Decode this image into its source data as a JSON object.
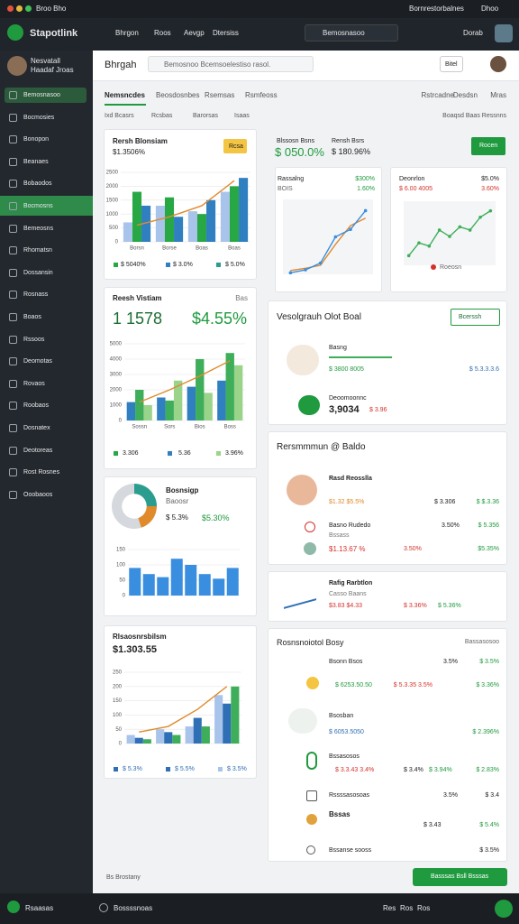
{
  "system_bar": {
    "app": "Broo Bho",
    "status": "Bornrestorbalnes",
    "user": "Dhoo"
  },
  "app_header": {
    "logo": "Stapotlink",
    "nav": [
      "Bhrgon",
      "Roos",
      "Aevgp",
      "Dtersiss"
    ],
    "search": "Bemosnasoo",
    "user": "Dorab"
  },
  "sidebar": {
    "profile_name": "Nesvatall",
    "profile_role": "Haadaf Jroas",
    "items": [
      "Bemosnasoo",
      "Bocmosies",
      "Bonopon",
      "Beanaes",
      "Bobaodos",
      "Bocmosns",
      "Bemeosns",
      "Rhomatsn",
      "Dossansin",
      "Rosnass",
      "Boaos",
      "Rssoos",
      "Deomotas",
      "Rovaos",
      "Roobaos",
      "Dosnatex",
      "Deotoreas",
      "Rost Rosnes",
      "Ooobaoos"
    ],
    "selected": 0,
    "highlighted": 5
  },
  "page_header": {
    "title": "Bhrgah",
    "search": "Bemosnoo Bcemsoelestiso rasol.",
    "badge": "Bitel"
  },
  "tabs": [
    "Nemsncdes",
    "Beosdosnbes",
    "Rsemsas",
    "Rsmfeoss"
  ],
  "tabs_right": [
    "Rstrcadne",
    "Desdsn",
    "Mras"
  ],
  "filters": [
    "Ixd Bcasrs",
    "Rcsbas",
    "Barorsas",
    "Isaas"
  ],
  "filters_right": "Boaqsd Baas Ressnns",
  "card_revenue": {
    "title": "Rersh Blonsiam",
    "subtitle": "$1.3506%",
    "badge": "Rcsa",
    "legend": [
      "$ 5040%",
      "$ 3.0%",
      "$ 5.0%"
    ],
    "chart": {
      "type": "bar",
      "categories": [
        "Borsn",
        "Borse",
        "Boas",
        "Boas"
      ],
      "ylim": [
        0,
        2500
      ],
      "yticks": [
        0,
        500,
        1000,
        1500,
        2000,
        2500
      ],
      "series": [
        {
          "color": "#a9c4ea",
          "values": [
            700,
            1300,
            1100,
            1800
          ]
        },
        {
          "color": "#27a844",
          "values": [
            1800,
            1600,
            1000,
            2000
          ]
        },
        {
          "color": "#2f7fc1",
          "values": [
            1300,
            900,
            1500,
            2300
          ]
        },
        {
          "type": "line",
          "color": "#e08a2c",
          "values": [
            600,
            900,
            1300,
            2200
          ]
        }
      ]
    }
  },
  "card_visits": {
    "title": "Reesh Vistiam",
    "meta": "Bas",
    "count": "1 1578",
    "rate": "$4.55%",
    "legend": [
      "3.306",
      "5.36",
      "3.96%"
    ],
    "chart": {
      "type": "bar",
      "categories": [
        "Sossn",
        "Sors",
        "Bios",
        "Boss"
      ],
      "ylim": [
        0,
        5000
      ],
      "yticks": [
        0,
        1000,
        2000,
        3000,
        4000,
        5000
      ],
      "series": [
        {
          "color": "#2f7fc1",
          "values": [
            1200,
            1500,
            2200,
            2600
          ]
        },
        {
          "color": "#3fae5a",
          "values": [
            2000,
            1300,
            4000,
            4400
          ]
        },
        {
          "color": "#9ad38a",
          "values": [
            1000,
            2600,
            1800,
            3600
          ]
        },
        {
          "type": "line",
          "color": "#e08a2c",
          "values": [
            1200,
            2000,
            2900,
            3900
          ]
        }
      ]
    }
  },
  "card_share": {
    "title": "Bosnsigp",
    "subtitle": "Baoosr",
    "value_a": "$ 5.3%",
    "value_b": "$5.30%",
    "pie": {
      "type": "pie",
      "values": [
        25,
        20,
        55
      ],
      "colors": [
        "#2a9d8f",
        "#e08a2c",
        "#d5d8dc"
      ]
    },
    "chart": {
      "type": "bar",
      "categories": [
        null,
        null,
        null,
        null,
        null,
        null,
        null,
        null
      ],
      "ylim": [
        0,
        150
      ],
      "yticks": [
        0,
        50,
        100,
        150
      ],
      "series": [
        {
          "color": "#3a8ee0",
          "values": [
            90,
            70,
            60,
            120,
            100,
            70,
            55,
            90
          ]
        }
      ]
    }
  },
  "card_balance": {
    "title": "Rlsaosnrsbilsm",
    "value": "$1.303.55",
    "legend": [
      "$ 5.3%",
      "$ 5.5%",
      "$ 3.5%"
    ],
    "chart": {
      "type": "bar",
      "categories": [
        null,
        null,
        null,
        null
      ],
      "ylim": [
        0,
        250
      ],
      "yticks": [
        0,
        50,
        100,
        150,
        200,
        250
      ],
      "series": [
        {
          "color": "#a9c4ea",
          "values": [
            30,
            50,
            60,
            170
          ]
        },
        {
          "color": "#2f6fb5",
          "values": [
            20,
            40,
            90,
            140
          ]
        },
        {
          "color": "#3fae5a",
          "values": [
            15,
            30,
            60,
            200
          ]
        },
        {
          "type": "line",
          "color": "#e08a2c",
          "values": [
            40,
            60,
            120,
            200
          ]
        }
      ]
    }
  },
  "card_growth": {
    "label": "Blssosn Bsns",
    "value": "$ 050.0%",
    "label_b": "Rensh Bsrs",
    "value_b": "$ 180.96%",
    "button": "Rocen",
    "left": {
      "title": "Rassalng",
      "value": "$300%",
      "sub": "BOIS",
      "rate": "1.60%",
      "chart": {
        "type": "line",
        "categories": [
          null,
          null,
          null,
          null,
          null,
          null
        ],
        "ylim": [
          0,
          100
        ],
        "series": [
          {
            "color": "#e08a2c",
            "values": [
              5,
              8,
              12,
              40,
              65,
              75
            ]
          },
          {
            "color": "#3a8ee0",
            "values": [
              2,
              6,
              15,
              50,
              60,
              85
            ],
            "markers": true
          }
        ]
      }
    },
    "right": {
      "title": "Deonrlon",
      "value": "$5.0%",
      "sub": "$ 6.00 4005",
      "rate": "3.60%",
      "legend": "Roeosn",
      "chart": {
        "type": "line",
        "categories": [
          null,
          null,
          null,
          null,
          null,
          null,
          null,
          null,
          null
        ],
        "ylim": [
          0,
          100
        ],
        "series": [
          {
            "color": "#3fae5a",
            "values": [
              15,
              35,
              30,
              55,
              45,
              60,
              55,
              75,
              85
            ],
            "markers": true
          }
        ]
      }
    }
  },
  "card_plot": {
    "title": "Vesolgrauh Olot Boal",
    "button": "Bcerssh",
    "row1": {
      "name": "Basng",
      "value": "$ 3800 8005",
      "stat": "$ 5.3.3.3.6"
    },
    "row2": {
      "name": "Deoomoonnc",
      "value": "3,9034",
      "stat": "$ 3.96"
    }
  },
  "card_summary": {
    "title": "Rersmmmun @ Baldo",
    "row1": {
      "name": "Rasd Reosslla",
      "value": "$1.32 $5.5%",
      "stat": "$ 3.306",
      "stat_b": "$ $.3.36"
    },
    "row2": {
      "name": "Basno Rudedo",
      "sub": "Bssass",
      "rate": "3.50%",
      "value_top": "$ 5.356",
      "value": "$1.13.67 %",
      "rate_b": "3.50%",
      "stat": "$5.35%"
    }
  },
  "card_rating": {
    "title": "Rafig Rarbtlon",
    "sub": "Casso Baans",
    "value": "$3.83 $4.33",
    "stat": "$ 3.36%",
    "stat_b": "$ 5.36%"
  },
  "card_list": {
    "title": "Rosnsnoiotol Bosy",
    "action": "Bassasosoo",
    "r1": {
      "name": "Bsonn Bsos",
      "rate": "3.5%",
      "stat": "$ 3.5%",
      "a": "$ 6253.50.50",
      "b": "$ 5.3.35 3.5%",
      "c": "$ 3.36%"
    },
    "r2": {
      "name": "Bsosban",
      "a": "$ 6053.5050",
      "c": "$ 2.396%"
    },
    "r3": {
      "name": "Bssasosos",
      "a": "$ 3.3.43 3.4%",
      "b": "$ 3.4%",
      "c": "$ 3.94%",
      "d": "$ 2.83%"
    },
    "r4": {
      "name": "Rssssasosoas",
      "rate": "3.5%",
      "stat": "$ 3.4",
      "sub": "Bssas",
      "a": "$ 3.43",
      "c": "$ 5.4%"
    },
    "r5": {
      "name": "Bssanse sooss",
      "stat": "$ 3.5%"
    }
  },
  "footer": {
    "note": "Bs Brostany",
    "button": "Basssas Bsll Bsssas"
  },
  "bottom_bar": {
    "app": "Rsaasas",
    "tab": "Bossssnoas",
    "links": [
      "Res",
      "Ros",
      "Ros"
    ]
  }
}
